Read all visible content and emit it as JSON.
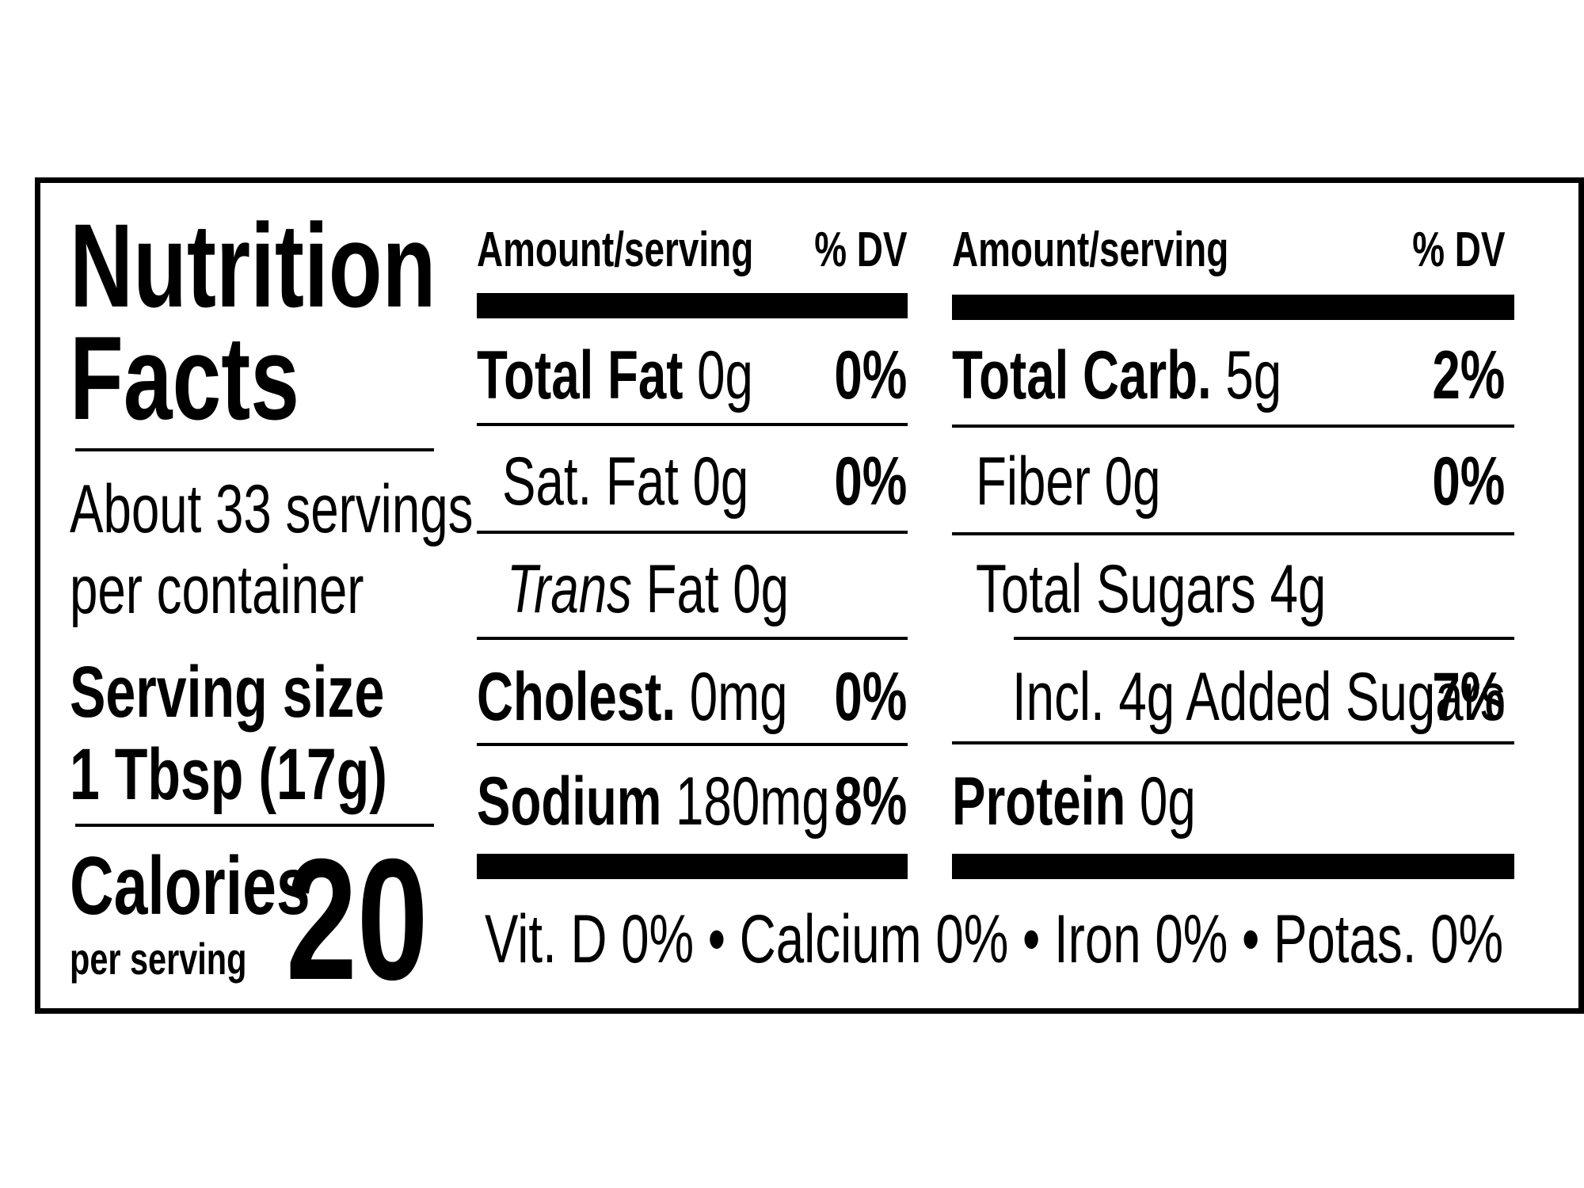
{
  "title": {
    "line1": "Nutrition",
    "line2": "Facts"
  },
  "servings": {
    "line1": "About 33 servings",
    "line2": "per container"
  },
  "serving_size": {
    "label": "Serving size",
    "value": "1 Tbsp (17g)"
  },
  "calories": {
    "label": "Calories",
    "sublabel": "per serving",
    "value": "20"
  },
  "left_column": {
    "header_amount": "Amount/serving",
    "header_dv": "% DV",
    "rows": [
      {
        "name": "Total Fat",
        "amount": "0g",
        "dv": "0%"
      },
      {
        "name": "Sat. Fat",
        "amount": "0g",
        "dv": "0%"
      },
      {
        "name_italic": "Trans",
        "name": "Fat",
        "amount": "0g",
        "dv": ""
      },
      {
        "name": "Cholest.",
        "amount": "0mg",
        "dv": "0%"
      },
      {
        "name": "Sodium",
        "amount": "180mg",
        "dv": "8%"
      }
    ]
  },
  "right_column": {
    "header_amount": "Amount/serving",
    "header_dv": "% DV",
    "rows": [
      {
        "name": "Total Carb.",
        "amount": "5g",
        "dv": "2%"
      },
      {
        "name": "Fiber",
        "amount": "0g",
        "dv": "0%"
      },
      {
        "name": "Total Sugars",
        "amount": "4g",
        "dv": ""
      },
      {
        "name": "Incl. 4g Added Sugars",
        "amount": "",
        "dv": "7%"
      },
      {
        "name": "Protein",
        "amount": "0g",
        "dv": ""
      }
    ]
  },
  "vitamins": [
    {
      "name": "Vit. D",
      "dv": "0%"
    },
    {
      "name": "Calcium",
      "dv": "0%"
    },
    {
      "name": "Iron",
      "dv": "0%"
    },
    {
      "name": "Potas.",
      "dv": "0%"
    }
  ],
  "bullet": "•"
}
